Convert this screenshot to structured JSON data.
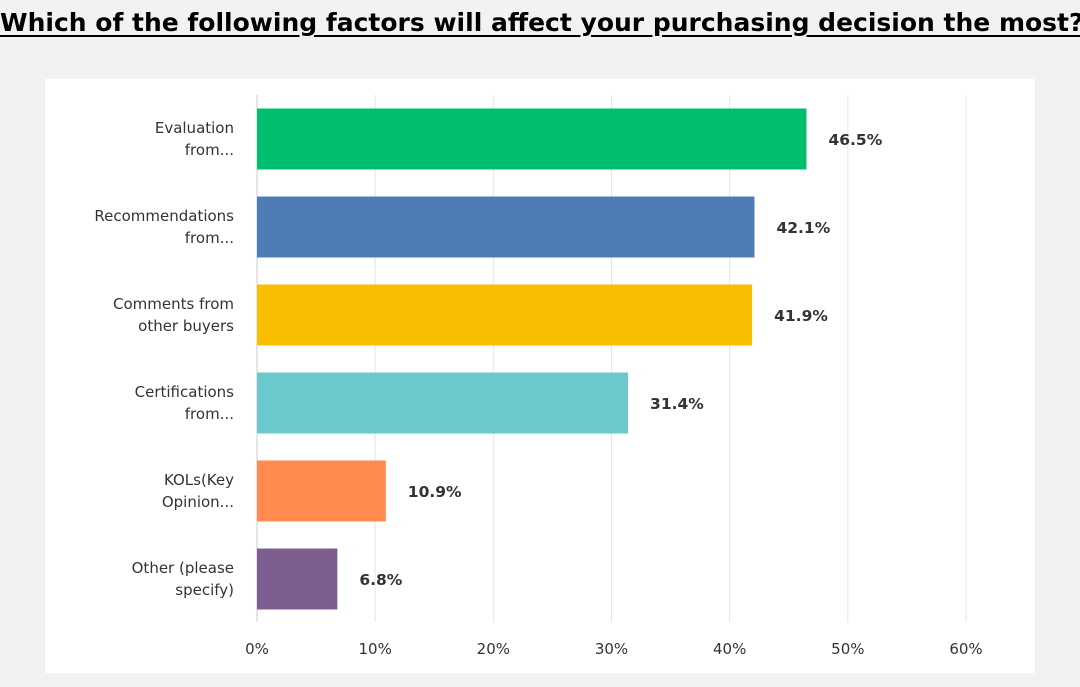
{
  "title": "Which of the following factors will affect your purchasing decision the most?",
  "chart_data": {
    "type": "bar",
    "orientation": "horizontal",
    "categories": [
      [
        "Evaluation",
        "from..."
      ],
      [
        "Recommendations",
        "from..."
      ],
      [
        "Comments from",
        "other buyers"
      ],
      [
        "Certifications",
        "from..."
      ],
      [
        "KOLs(Key",
        "Opinion..."
      ],
      [
        "Other (please",
        "specify)"
      ]
    ],
    "values": [
      46.5,
      42.1,
      41.9,
      31.4,
      10.9,
      6.8
    ],
    "value_labels": [
      "46.5%",
      "42.1%",
      "41.9%",
      "31.4%",
      "10.9%",
      "6.8%"
    ],
    "colors": [
      "#00bf6f",
      "#507cb6",
      "#f9be00",
      "#6bc8cd",
      "#ff8b4f",
      "#7d5e90"
    ],
    "xlim": [
      0,
      60
    ],
    "xticks": [
      0,
      10,
      20,
      30,
      40,
      50,
      60
    ],
    "xtick_labels": [
      "0%",
      "10%",
      "20%",
      "30%",
      "40%",
      "50%",
      "60%"
    ],
    "grid": true,
    "xlabel": "",
    "ylabel": ""
  }
}
